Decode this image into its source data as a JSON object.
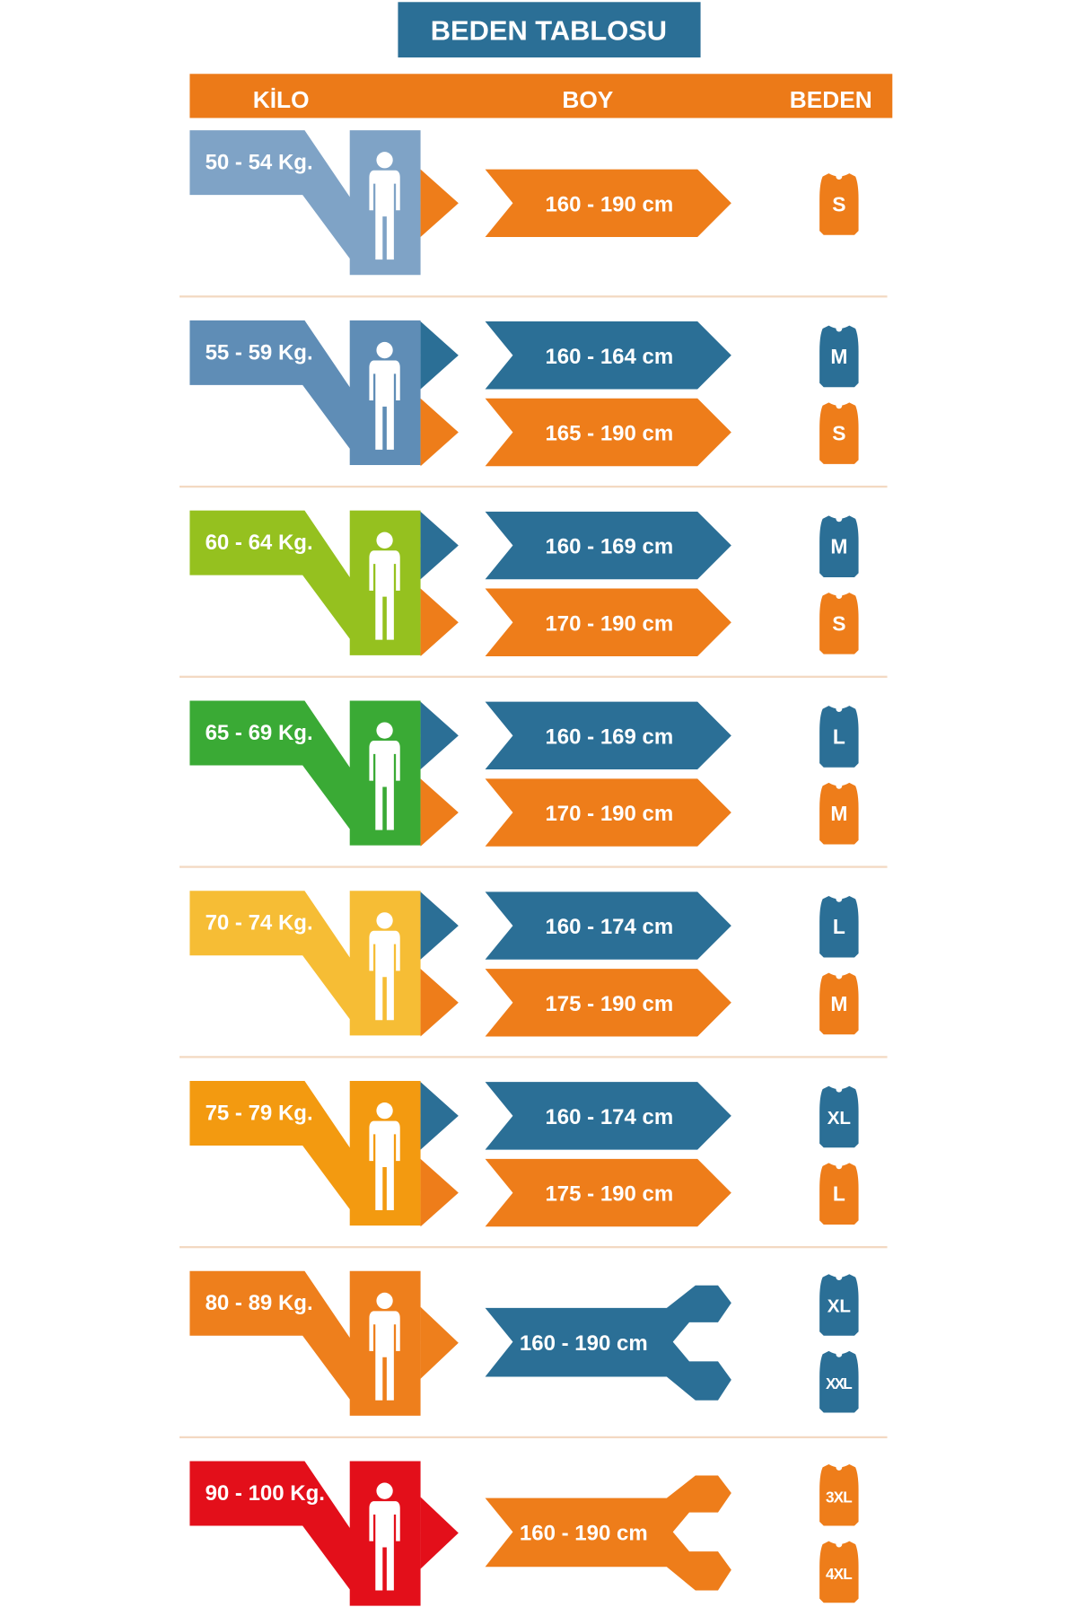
{
  "title": "BEDEN TABLOSU",
  "header": {
    "kilo": "KİLO",
    "boy": "BOY",
    "beden": "BEDEN"
  },
  "colors": {
    "blue": "#2b6f96",
    "orange": "#ee7d1a",
    "header_orange": "#ec7a18",
    "separator": "#f3d9c2"
  },
  "rows": [
    {
      "weight": "50 - 54 Kg.",
      "color": "#7fa3c6",
      "shape": "arrow",
      "heights": [
        {
          "range": "160 - 190 cm",
          "color": "orange"
        }
      ],
      "sizes": [
        {
          "label": "S",
          "color": "orange"
        }
      ]
    },
    {
      "weight": "55 - 59 Kg.",
      "color": "#5f8db6",
      "shape": "arrow",
      "heights": [
        {
          "range": "160 - 164 cm",
          "color": "blue"
        },
        {
          "range": "165 - 190 cm",
          "color": "orange"
        }
      ],
      "sizes": [
        {
          "label": "M",
          "color": "blue"
        },
        {
          "label": "S",
          "color": "orange"
        }
      ]
    },
    {
      "weight": "60 - 64 Kg.",
      "color": "#95c11f",
      "shape": "arrow",
      "heights": [
        {
          "range": "160 - 169 cm",
          "color": "blue"
        },
        {
          "range": "170 - 190 cm",
          "color": "orange"
        }
      ],
      "sizes": [
        {
          "label": "M",
          "color": "blue"
        },
        {
          "label": "S",
          "color": "orange"
        }
      ]
    },
    {
      "weight": "65 - 69 Kg.",
      "color": "#3aaa35",
      "shape": "arrow",
      "heights": [
        {
          "range": "160 - 169 cm",
          "color": "blue"
        },
        {
          "range": "170 - 190 cm",
          "color": "orange"
        }
      ],
      "sizes": [
        {
          "label": "L",
          "color": "blue"
        },
        {
          "label": "M",
          "color": "orange"
        }
      ]
    },
    {
      "weight": "70 - 74 Kg.",
      "color": "#f6bd35",
      "shape": "arrow",
      "heights": [
        {
          "range": "160 - 174 cm",
          "color": "blue"
        },
        {
          "range": "175 - 190 cm",
          "color": "orange"
        }
      ],
      "sizes": [
        {
          "label": "L",
          "color": "blue"
        },
        {
          "label": "M",
          "color": "orange"
        }
      ]
    },
    {
      "weight": "75 - 79 Kg.",
      "color": "#f39a10",
      "shape": "arrow",
      "heights": [
        {
          "range": "160 - 174 cm",
          "color": "blue"
        },
        {
          "range": "175 - 190 cm",
          "color": "orange"
        }
      ],
      "sizes": [
        {
          "label": "XL",
          "color": "blue"
        },
        {
          "label": "L",
          "color": "orange"
        }
      ]
    },
    {
      "weight": "80 - 89 Kg.",
      "color": "#ee7f1c",
      "shape": "fork",
      "heights": [
        {
          "range": "160 - 190 cm",
          "color": "blue"
        }
      ],
      "sizes": [
        {
          "label": "XL",
          "color": "blue"
        },
        {
          "label": "XXL",
          "color": "blue"
        }
      ]
    },
    {
      "weight": "90 - 100 Kg.",
      "color": "#e30f1a",
      "shape": "fork",
      "heights": [
        {
          "range": "160 - 190 cm",
          "color": "orange"
        }
      ],
      "sizes": [
        {
          "label": "3XL",
          "color": "orange"
        },
        {
          "label": "4XL",
          "color": "orange"
        }
      ]
    }
  ]
}
